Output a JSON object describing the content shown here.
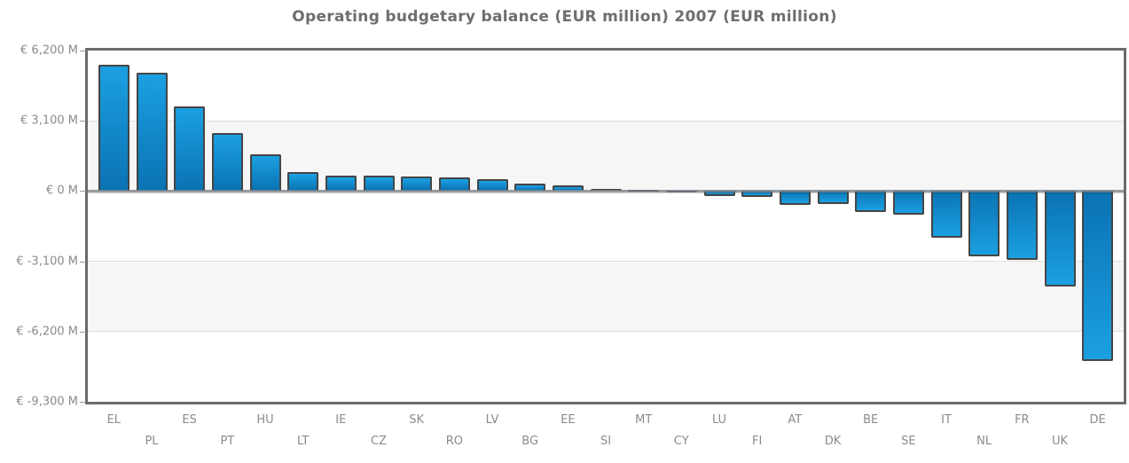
{
  "colors": {
    "bar_light": "#1ba0e2",
    "bar_dark": "#0a72b2",
    "bar_border": "#454545",
    "plot_border": "#6b6b6b",
    "gridline": "#dedede",
    "band": "#f6f6f6",
    "zero_line": "#7a8086",
    "axis_text": "#8b8b8b",
    "title_text": "#6e6e6e"
  },
  "y_axis": {
    "tick_labels": [
      "€ 6,200 M",
      "€ 3,100 M",
      "€ 0 M",
      "€ -3,100 M",
      "€ -6,200 M",
      "€ -9,300 M"
    ],
    "tick_values": [
      6200,
      3100,
      0,
      -3100,
      -6200,
      -9300
    ]
  },
  "chart_data": {
    "type": "bar",
    "title": "Operating budgetary balance (EUR million) 2007 (EUR million)",
    "categories": [
      "EL",
      "PL",
      "ES",
      "PT",
      "HU",
      "LT",
      "IE",
      "CZ",
      "SK",
      "RO",
      "LV",
      "BG",
      "EE",
      "SI",
      "MT",
      "CY",
      "LU",
      "FI",
      "AT",
      "DK",
      "BE",
      "SE",
      "IT",
      "NL",
      "FR",
      "UK",
      "DE"
    ],
    "values": [
      5560,
      5210,
      3730,
      2560,
      1610,
      830,
      690,
      680,
      630,
      600,
      510,
      340,
      260,
      100,
      50,
      -50,
      -210,
      -250,
      -600,
      -590,
      -940,
      -1030,
      -2070,
      -2890,
      -3030,
      -4200,
      -7490
    ],
    "xlabel": "",
    "ylabel": "",
    "ylim": [
      -9300,
      6200
    ],
    "y_tick_step": 3100,
    "grid": true,
    "legend": false,
    "x_tick_label_rows": 2
  }
}
